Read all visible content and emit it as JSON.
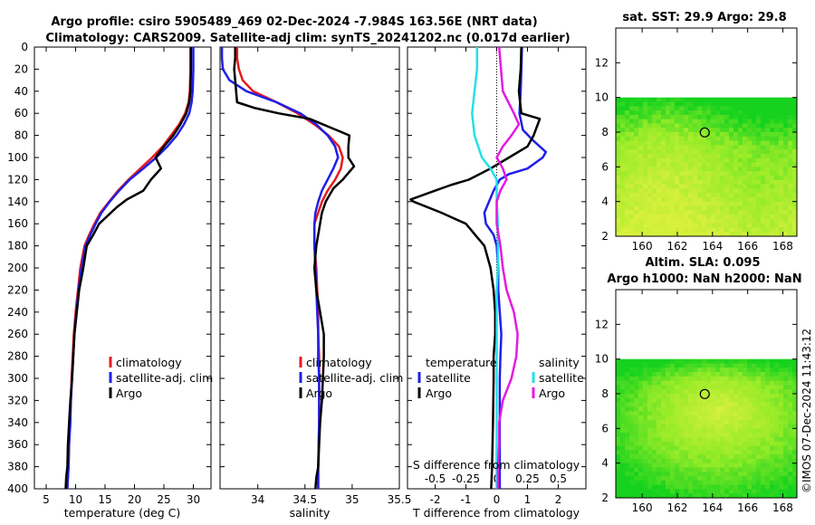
{
  "header": {
    "title_line1": "Argo profile: csiro 5905489_469 02-Dec-2024 -7.984S 163.56E (NRT data)",
    "title_line2": "Climatology: CARS2009. Satellite-adj clim: synTS_20241202.nc (0.017d earlier)"
  },
  "footer": {
    "stamp": "©IMOS 07-Dec-2024 11:43:12"
  },
  "colors": {
    "climatology": "#e8191a",
    "satellite": "#1f1fe8",
    "argo": "#000000",
    "sat_diff": "#22e0e8",
    "sal_diff": "#e619e0"
  },
  "chart_data": [
    {
      "id": "temperature",
      "type": "line",
      "xlabel": "temperature (deg C)",
      "ylabel": "",
      "xlim": [
        3,
        33
      ],
      "ylim": [
        400,
        0
      ],
      "xticks": [
        5,
        10,
        15,
        20,
        25,
        30
      ],
      "yticks": [
        0,
        20,
        40,
        60,
        80,
        100,
        120,
        140,
        160,
        180,
        200,
        220,
        240,
        260,
        280,
        300,
        320,
        340,
        360,
        380,
        400
      ],
      "legend": [
        "climatology",
        "satellite-adj. clim",
        "Argo"
      ],
      "series": [
        {
          "name": "climatology",
          "color": "#e8191a",
          "x": [
            29.5,
            29.5,
            29.4,
            29.2,
            28.6,
            27.6,
            26.2,
            24.8,
            23.0,
            21.0,
            19.0,
            17.2,
            15.7,
            14.2,
            13.2,
            12.3,
            11.5,
            10.8,
            10.4,
            10.0,
            9.7,
            9.5,
            9.3,
            9.2,
            9.0,
            8.9,
            8.8,
            8.7,
            8.6
          ],
          "depth": [
            0,
            20,
            40,
            50,
            60,
            70,
            80,
            90,
            100,
            110,
            120,
            130,
            140,
            150,
            160,
            170,
            180,
            200,
            220,
            240,
            260,
            280,
            300,
            320,
            340,
            360,
            380,
            390,
            400
          ]
        },
        {
          "name": "satellite-adj. clim",
          "color": "#1f1fe8",
          "x": [
            30.0,
            30.0,
            29.9,
            29.7,
            29.3,
            28.4,
            27.2,
            25.6,
            23.7,
            21.5,
            19.2,
            17.4,
            15.8,
            14.4,
            13.4,
            12.5,
            11.7,
            11.0,
            10.5,
            10.1,
            9.8,
            9.6,
            9.4,
            9.2,
            9.1,
            8.9,
            8.8,
            8.7,
            8.6
          ],
          "depth": [
            0,
            20,
            40,
            50,
            60,
            70,
            80,
            90,
            100,
            110,
            120,
            130,
            140,
            150,
            160,
            170,
            180,
            200,
            220,
            240,
            260,
            280,
            300,
            320,
            340,
            360,
            380,
            390,
            400
          ]
        },
        {
          "name": "Argo",
          "color": "#000000",
          "x": [
            29.6,
            29.6,
            29.5,
            29.3,
            28.8,
            27.8,
            26.6,
            25.0,
            23.6,
            24.5,
            22.8,
            21.5,
            18.7,
            17.0,
            14.0,
            13.0,
            11.9,
            11.3,
            10.6,
            10.2,
            9.8,
            9.6,
            9.4,
            9.1,
            8.9,
            8.7,
            8.6,
            8.4,
            8.3
          ],
          "depth": [
            0,
            20,
            40,
            50,
            60,
            70,
            80,
            90,
            100,
            110,
            120,
            130,
            138,
            145,
            160,
            170,
            180,
            200,
            220,
            240,
            260,
            280,
            300,
            320,
            340,
            360,
            380,
            390,
            400
          ]
        }
      ]
    },
    {
      "id": "salinity",
      "type": "line",
      "xlabel": "salinity",
      "ylabel": "",
      "xlim": [
        33.6,
        35.5
      ],
      "ylim": [
        400,
        0
      ],
      "xticks": [
        34,
        34.5,
        35,
        35.5
      ],
      "legend": [
        "climatology",
        "satellite-adj. clim",
        "Argo"
      ],
      "series": [
        {
          "name": "climatology",
          "color": "#e8191a",
          "x": [
            33.78,
            33.78,
            33.8,
            33.84,
            33.95,
            34.2,
            34.42,
            34.6,
            34.75,
            34.86,
            34.9,
            34.88,
            34.82,
            34.74,
            34.68,
            34.64,
            34.6,
            34.6,
            34.62,
            34.63,
            34.64,
            34.64,
            34.65,
            34.65,
            34.65,
            34.65,
            34.64,
            34.64
          ],
          "depth": [
            0,
            10,
            20,
            30,
            40,
            50,
            60,
            70,
            80,
            90,
            100,
            110,
            120,
            130,
            140,
            150,
            160,
            180,
            200,
            220,
            240,
            260,
            280,
            300,
            320,
            340,
            380,
            400
          ]
        },
        {
          "name": "satellite-adj. clim",
          "color": "#1f1fe8",
          "x": [
            33.62,
            33.62,
            33.63,
            33.7,
            33.88,
            34.2,
            34.45,
            34.62,
            34.74,
            34.82,
            34.85,
            34.8,
            34.74,
            34.68,
            34.64,
            34.61,
            34.6,
            34.6,
            34.61,
            34.62,
            34.63,
            34.64,
            34.64,
            34.65,
            34.65,
            34.65,
            34.64,
            34.64
          ],
          "depth": [
            0,
            10,
            20,
            30,
            40,
            50,
            60,
            70,
            80,
            90,
            100,
            110,
            120,
            130,
            140,
            150,
            160,
            180,
            200,
            220,
            240,
            260,
            280,
            300,
            320,
            340,
            380,
            400
          ]
        },
        {
          "name": "Argo",
          "color": "#000000",
          "x": [
            33.76,
            33.76,
            33.75,
            33.76,
            33.78,
            33.96,
            34.22,
            34.55,
            34.83,
            34.97,
            34.96,
            34.96,
            35.02,
            34.9,
            34.8,
            34.72,
            34.68,
            34.65,
            34.62,
            34.6,
            34.62,
            34.66,
            34.7,
            34.7,
            34.7,
            34.69,
            34.68,
            34.66,
            34.65,
            34.64,
            34.62,
            34.61
          ],
          "depth": [
            0,
            10,
            20,
            30,
            50,
            55,
            60,
            65,
            75,
            80,
            90,
            100,
            108,
            120,
            128,
            140,
            150,
            165,
            180,
            200,
            220,
            240,
            260,
            270,
            280,
            300,
            320,
            340,
            360,
            380,
            390,
            400
          ]
        }
      ]
    },
    {
      "id": "differences",
      "type": "line",
      "xlabel": "T difference from climatology",
      "xlabel_top": "S difference from climatology",
      "xlim": [
        -2.9,
        2.9
      ],
      "ylim": [
        400,
        0
      ],
      "xticks": [
        -2,
        -1,
        0,
        1,
        2
      ],
      "xticks_top": [
        -0.5,
        -0.25,
        0,
        0.25,
        0.5
      ],
      "xticks_top_labels": [
        "-0.5",
        "-0.25",
        "0",
        "0.25",
        "0.5"
      ],
      "legend_temperature": [
        "temperature",
        "satellite",
        "Argo"
      ],
      "legend_salinity": [
        "salinity",
        "satellite",
        "Argo"
      ],
      "series": [
        {
          "name": "T satellite",
          "color": "#1f1fe8",
          "axis": "T",
          "x": [
            0.82,
            0.8,
            0.78,
            0.74,
            0.85,
            1.2,
            1.6,
            1.5,
            1.0,
            0.4,
            0.1,
            -0.1,
            -0.4,
            -0.35,
            -0.1,
            0.0,
            0.05,
            0.05,
            0.1,
            0.15,
            0.12,
            0.1,
            0.1,
            0.1,
            0.1,
            0.1,
            0.1
          ],
          "depth": [
            0,
            20,
            40,
            60,
            75,
            85,
            95,
            100,
            110,
            115,
            120,
            130,
            150,
            160,
            170,
            180,
            200,
            220,
            240,
            260,
            280,
            300,
            320,
            340,
            360,
            380,
            400
          ]
        },
        {
          "name": "T Argo",
          "color": "#000000",
          "axis": "T",
          "x": [
            0.8,
            0.78,
            0.72,
            0.8,
            1.4,
            1.2,
            1.0,
            0.4,
            -0.2,
            -0.9,
            -1.5,
            -2.0,
            -2.8,
            -2.7,
            -1.8,
            -1.0,
            -0.7,
            -0.4,
            -0.2,
            -0.1,
            -0.05,
            -0.05,
            -0.1,
            -0.1,
            -0.12,
            -0.15,
            -0.18
          ],
          "depth": [
            0,
            20,
            40,
            60,
            65,
            80,
            90,
            100,
            110,
            120,
            125,
            130,
            138,
            140,
            150,
            160,
            170,
            180,
            200,
            220,
            240,
            260,
            280,
            300,
            340,
            380,
            400
          ]
        },
        {
          "name": "S satellite",
          "color": "#22e0e8",
          "axis": "S",
          "x": [
            -0.16,
            -0.16,
            -0.18,
            -0.2,
            -0.18,
            -0.12,
            -0.05,
            0.0,
            0.0,
            0.01,
            0.01,
            0.01,
            0.0,
            0.0,
            0.0,
            0.0,
            0.0,
            0.0
          ],
          "depth": [
            0,
            20,
            40,
            60,
            80,
            100,
            110,
            120,
            140,
            160,
            180,
            200,
            220,
            240,
            280,
            320,
            360,
            400
          ]
        },
        {
          "name": "S Argo",
          "color": "#e619e0",
          "axis": "S",
          "x": [
            0.02,
            0.05,
            0.14,
            0.18,
            0.12,
            0.05,
            0.0,
            0.05,
            0.08,
            0.03,
            0.0,
            0.0,
            0.03,
            0.05,
            0.08,
            0.14,
            0.17,
            0.16,
            0.12,
            0.05,
            0.02,
            0.02,
            0.01,
            0.01
          ],
          "depth": [
            0,
            40,
            60,
            70,
            80,
            90,
            100,
            110,
            120,
            130,
            140,
            160,
            180,
            200,
            220,
            240,
            260,
            280,
            300,
            320,
            340,
            360,
            380,
            400
          ]
        }
      ]
    },
    {
      "id": "sst-map",
      "type": "heatmap",
      "title": "sat. SST: 29.9 Argo: 29.8",
      "xticks": [
        160,
        162,
        164,
        166,
        168
      ],
      "yticks": [
        2,
        4,
        6,
        8,
        10,
        12
      ],
      "xlim": [
        158.5,
        168.8
      ],
      "ylim": [
        2,
        14
      ],
      "data_extent_lat": [
        2,
        10
      ],
      "marker": {
        "lon": 163.56,
        "lat": 7.984
      }
    },
    {
      "id": "sla-map",
      "type": "heatmap",
      "title_line1": "Altim. SLA: 0.095",
      "title_line2": "Argo h1000: NaN h2000: NaN",
      "xticks": [
        160,
        162,
        164,
        166,
        168
      ],
      "yticks": [
        2,
        4,
        6,
        8,
        10,
        12
      ],
      "xlim": [
        158.5,
        168.8
      ],
      "ylim": [
        2,
        14
      ],
      "data_extent_lat": [
        2,
        10
      ],
      "marker": {
        "lon": 163.56,
        "lat": 7.984
      }
    }
  ]
}
